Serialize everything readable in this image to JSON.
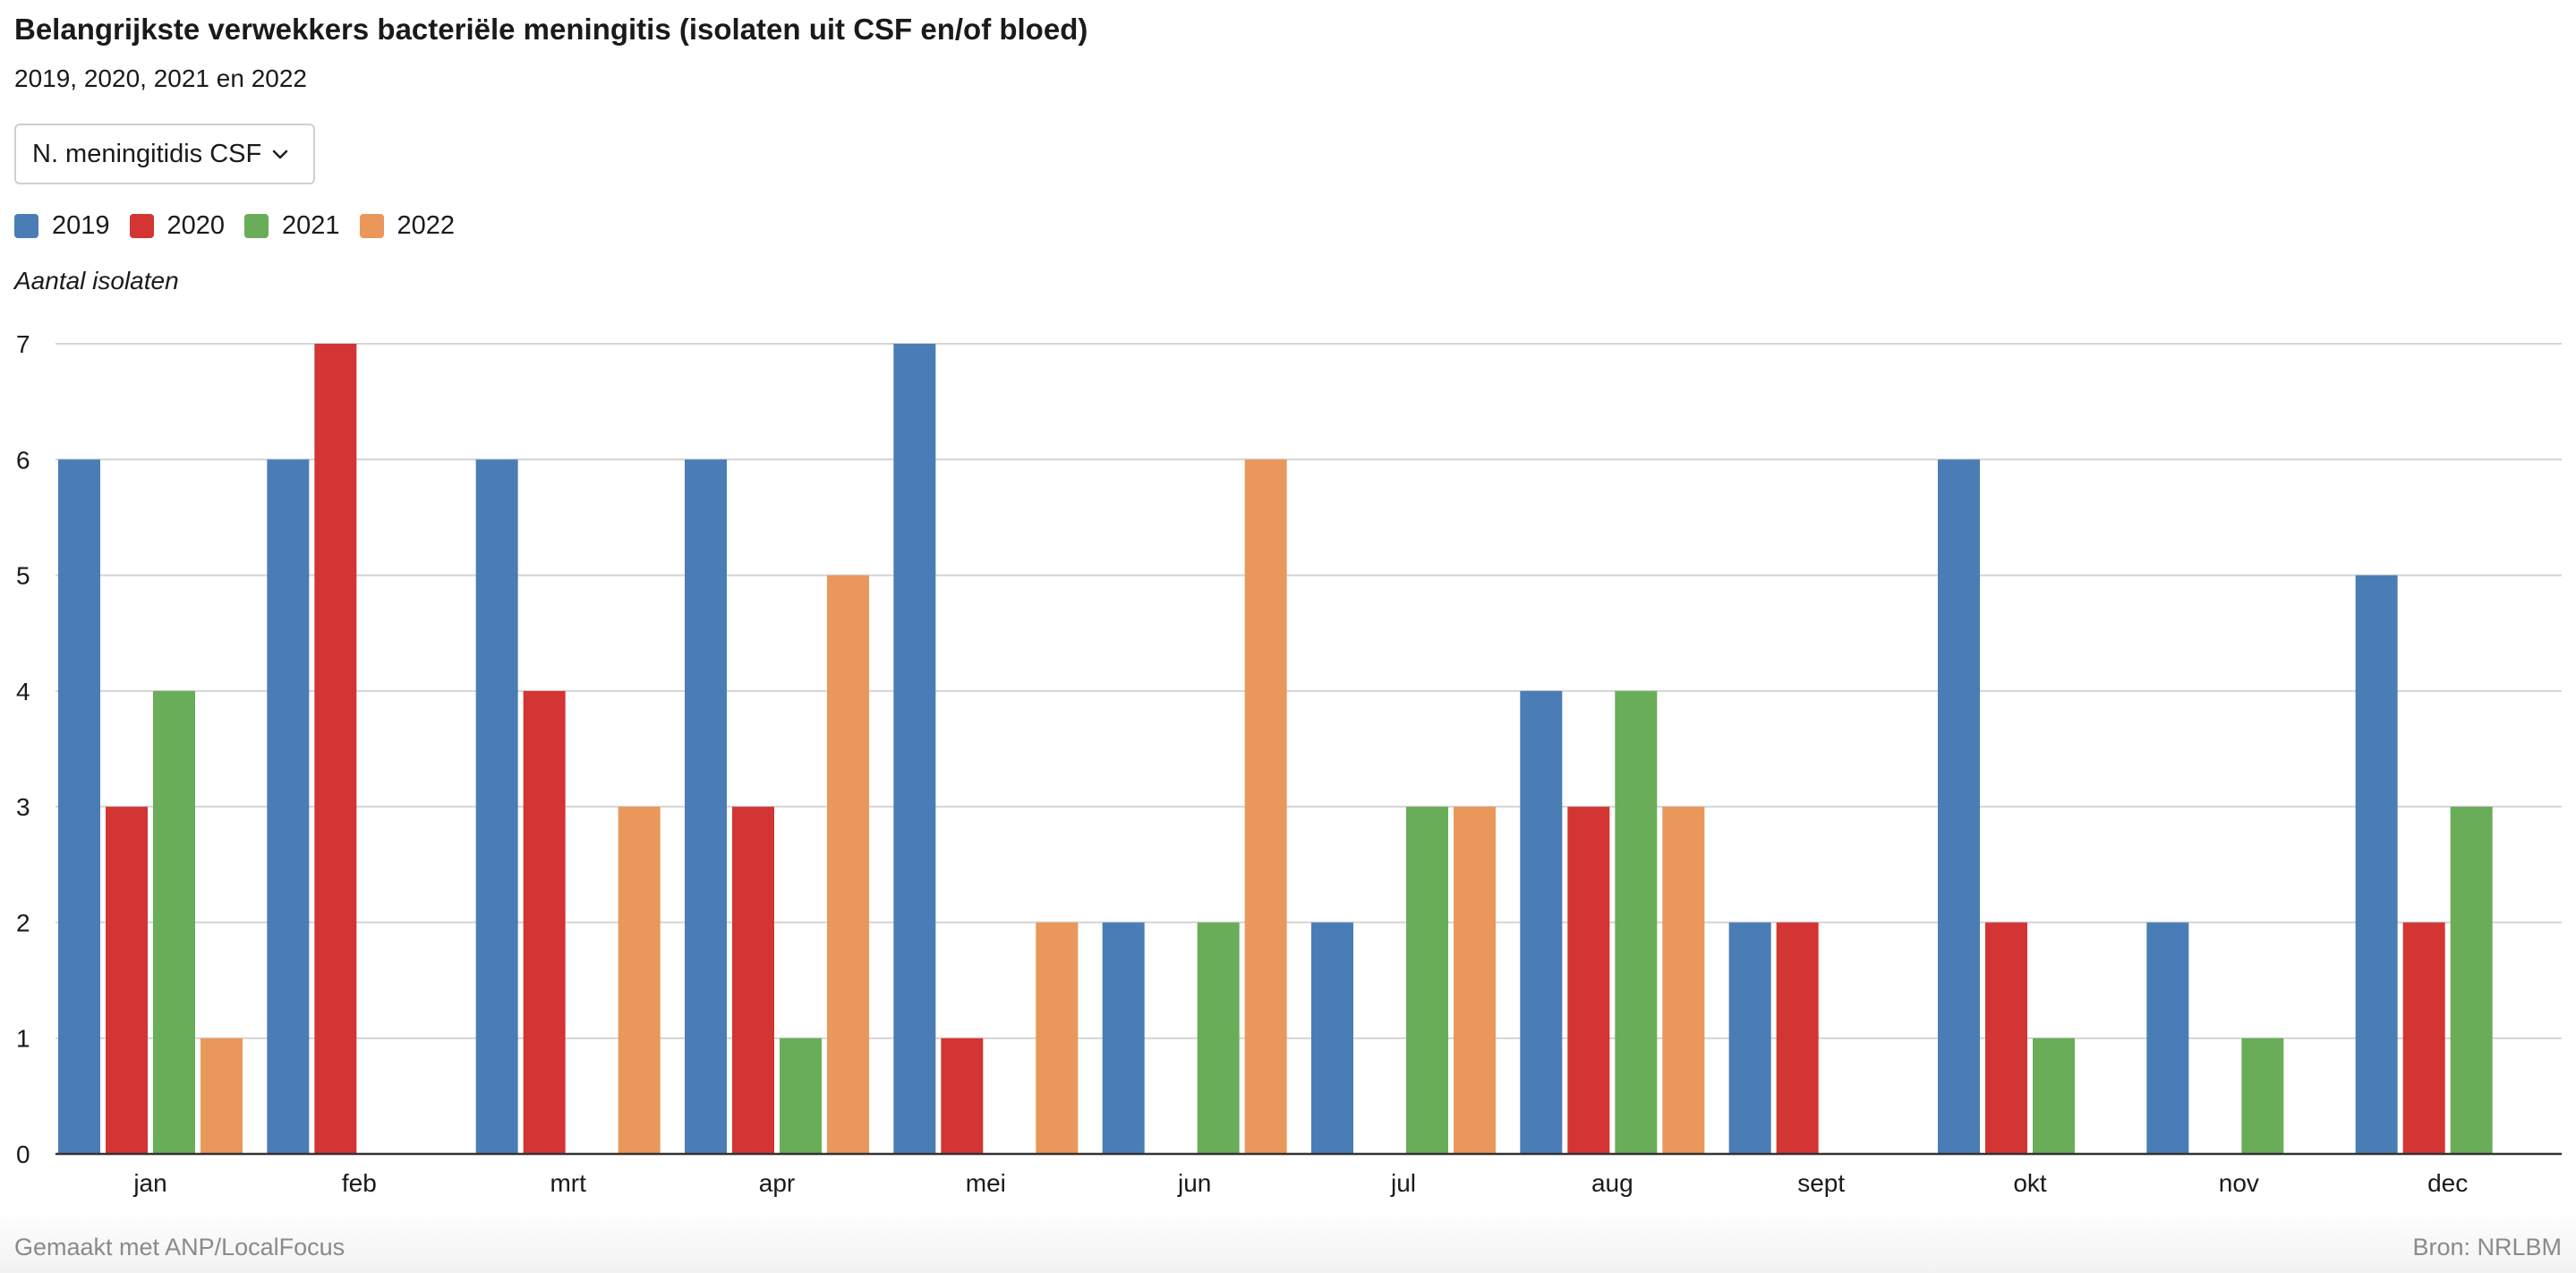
{
  "title": "Belangrijkste verwekkers bacteriële meningitis (isolaten uit CSF en/of bloed)",
  "subtitle": "2019, 2020, 2021 en 2022",
  "dropdown": {
    "selected": "N. meningitidis CSF",
    "icon": "chevron-down-icon"
  },
  "footer": {
    "made_with": "Gemaakt met ANP/LocalFocus",
    "source": "Bron:  NRLBM"
  },
  "colors": {
    "2019": "#4a7db5",
    "2020": "#d23533",
    "2021": "#69ad58",
    "2022": "#e9975b"
  },
  "chart_data": {
    "type": "bar",
    "title": "Belangrijkste verwekkers bacteriële meningitis (isolaten uit CSF en/of bloed)",
    "subtitle": "2019, 2020, 2021 en 2022",
    "xlabel": "",
    "ylabel": "Aantal isolaten",
    "ylim": [
      0,
      7
    ],
    "yticks": [
      0,
      1,
      2,
      3,
      4,
      5,
      6,
      7
    ],
    "grid": true,
    "legend_position": "top-left",
    "categories": [
      "jan",
      "feb",
      "mrt",
      "apr",
      "mei",
      "jun",
      "jul",
      "aug",
      "sept",
      "okt",
      "nov",
      "dec"
    ],
    "series": [
      {
        "name": "2019",
        "color": "#4a7db5",
        "values": [
          6,
          6,
          6,
          6,
          7,
          2,
          2,
          4,
          2,
          6,
          2,
          5
        ]
      },
      {
        "name": "2020",
        "color": "#d23533",
        "values": [
          3,
          7,
          4,
          3,
          1,
          0,
          0,
          3,
          2,
          2,
          0,
          2
        ]
      },
      {
        "name": "2021",
        "color": "#69ad58",
        "values": [
          4,
          0,
          0,
          1,
          0,
          2,
          3,
          4,
          0,
          1,
          1,
          3
        ]
      },
      {
        "name": "2022",
        "color": "#e9975b",
        "values": [
          1,
          0,
          3,
          5,
          2,
          6,
          3,
          3,
          0,
          0,
          0,
          0
        ]
      }
    ]
  }
}
